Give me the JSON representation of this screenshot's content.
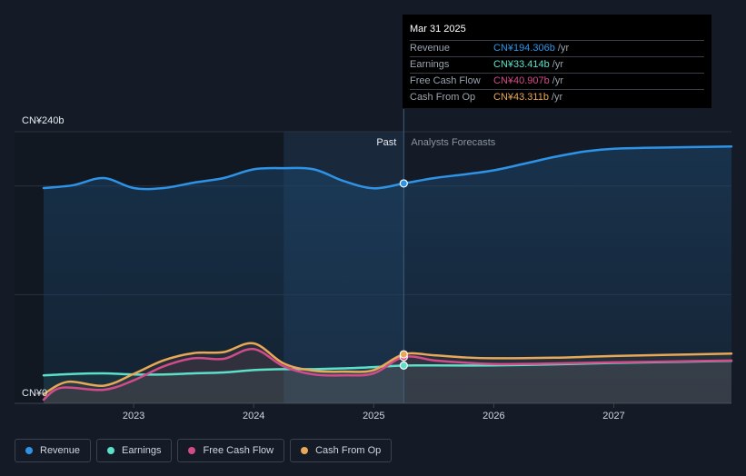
{
  "chart_data": {
    "type": "area",
    "y_top_label": "CN¥240b",
    "y_zero_label": "CN¥0",
    "ylim": [
      0,
      240
    ],
    "xlim": [
      2022.25,
      2027.98
    ],
    "x_ticks": [
      {
        "label": "2023",
        "value": 2023
      },
      {
        "label": "2024",
        "value": 2024
      },
      {
        "label": "2025",
        "value": 2025
      },
      {
        "label": "2026",
        "value": 2026
      },
      {
        "label": "2027",
        "value": 2027
      }
    ],
    "past_label": "Past",
    "forecast_label": "Analysts Forecasts",
    "divider_x": 2025.25,
    "highlight_start_x": 2024.25,
    "grid": true,
    "series": [
      {
        "name": "Revenue",
        "color": "#2e93e6",
        "points": [
          [
            2022.25,
            190.2
          ],
          [
            2022.5,
            192.8
          ],
          [
            2022.75,
            199.1
          ],
          [
            2023.0,
            190.2
          ],
          [
            2023.25,
            190.2
          ],
          [
            2023.5,
            195.0
          ],
          [
            2023.75,
            199.1
          ],
          [
            2024.0,
            206.8
          ],
          [
            2024.25,
            207.8
          ],
          [
            2024.5,
            206.8
          ],
          [
            2024.75,
            196.4
          ],
          [
            2025.0,
            190.0
          ],
          [
            2025.25,
            194.306
          ],
          [
            2025.5,
            199.0
          ],
          [
            2025.75,
            202.2
          ],
          [
            2026.0,
            205.9
          ],
          [
            2026.25,
            211.6
          ],
          [
            2026.5,
            217.6
          ],
          [
            2026.75,
            222.4
          ],
          [
            2027.0,
            225.0
          ],
          [
            2027.5,
            226.2
          ],
          [
            2027.98,
            226.9
          ]
        ]
      },
      {
        "name": "Earnings",
        "color": "#5ce0c9",
        "points": [
          [
            2022.25,
            24.7
          ],
          [
            2022.5,
            26.0
          ],
          [
            2022.75,
            26.5
          ],
          [
            2023.0,
            25.5
          ],
          [
            2023.25,
            25.5
          ],
          [
            2023.5,
            26.5
          ],
          [
            2023.75,
            27.3
          ],
          [
            2024.0,
            29.4
          ],
          [
            2024.25,
            30.2
          ],
          [
            2024.5,
            30.2
          ],
          [
            2024.75,
            30.9
          ],
          [
            2025.0,
            32.0
          ],
          [
            2025.25,
            33.414
          ],
          [
            2025.5,
            33.5
          ],
          [
            2026.0,
            33.5
          ],
          [
            2026.5,
            34.4
          ],
          [
            2027.0,
            35.7
          ],
          [
            2027.98,
            37.5
          ]
        ]
      },
      {
        "name": "Free Cash Flow",
        "color": "#d24b8a",
        "points": [
          [
            2022.25,
            3.3
          ],
          [
            2022.4,
            13.8
          ],
          [
            2022.75,
            12.0
          ],
          [
            2023.0,
            20.3
          ],
          [
            2023.25,
            32.7
          ],
          [
            2023.5,
            39.8
          ],
          [
            2023.75,
            39.3
          ],
          [
            2024.0,
            48.0
          ],
          [
            2024.25,
            32.7
          ],
          [
            2024.5,
            25.5
          ],
          [
            2024.75,
            24.7
          ],
          [
            2025.0,
            26.5
          ],
          [
            2025.25,
            40.907
          ],
          [
            2025.5,
            38.0
          ],
          [
            2025.75,
            36.0
          ],
          [
            2026.0,
            34.7
          ],
          [
            2026.5,
            35.2
          ],
          [
            2027.0,
            36.2
          ],
          [
            2027.98,
            37.8
          ]
        ]
      },
      {
        "name": "Cash From Op",
        "color": "#e8a857",
        "points": [
          [
            2022.25,
            8.1
          ],
          [
            2022.45,
            19.0
          ],
          [
            2022.75,
            15.6
          ],
          [
            2023.0,
            26.0
          ],
          [
            2023.25,
            38.0
          ],
          [
            2023.5,
            44.4
          ],
          [
            2023.75,
            45.3
          ],
          [
            2024.0,
            53.0
          ],
          [
            2024.25,
            35.2
          ],
          [
            2024.5,
            28.8
          ],
          [
            2024.75,
            28.0
          ],
          [
            2025.0,
            29.4
          ],
          [
            2025.25,
            43.311
          ],
          [
            2025.5,
            42.5
          ],
          [
            2025.75,
            40.6
          ],
          [
            2026.0,
            39.8
          ],
          [
            2026.5,
            40.3
          ],
          [
            2027.0,
            41.8
          ],
          [
            2027.98,
            43.9
          ]
        ]
      }
    ]
  },
  "tooltip": {
    "date": "Mar 31 2025",
    "unit": "/yr",
    "rows": [
      {
        "label": "Revenue",
        "value": "CN¥194.306b",
        "color": "#2e93e6"
      },
      {
        "label": "Earnings",
        "value": "CN¥33.414b",
        "color": "#5ce0c9"
      },
      {
        "label": "Free Cash Flow",
        "value": "CN¥40.907b",
        "color": "#d24b8a"
      },
      {
        "label": "Cash From Op",
        "value": "CN¥43.311b",
        "color": "#e8a857"
      }
    ]
  },
  "legend": [
    {
      "label": "Revenue",
      "color": "#2e93e6"
    },
    {
      "label": "Earnings",
      "color": "#5ce0c9"
    },
    {
      "label": "Free Cash Flow",
      "color": "#d24b8a"
    },
    {
      "label": "Cash From Op",
      "color": "#e8a857"
    }
  ]
}
